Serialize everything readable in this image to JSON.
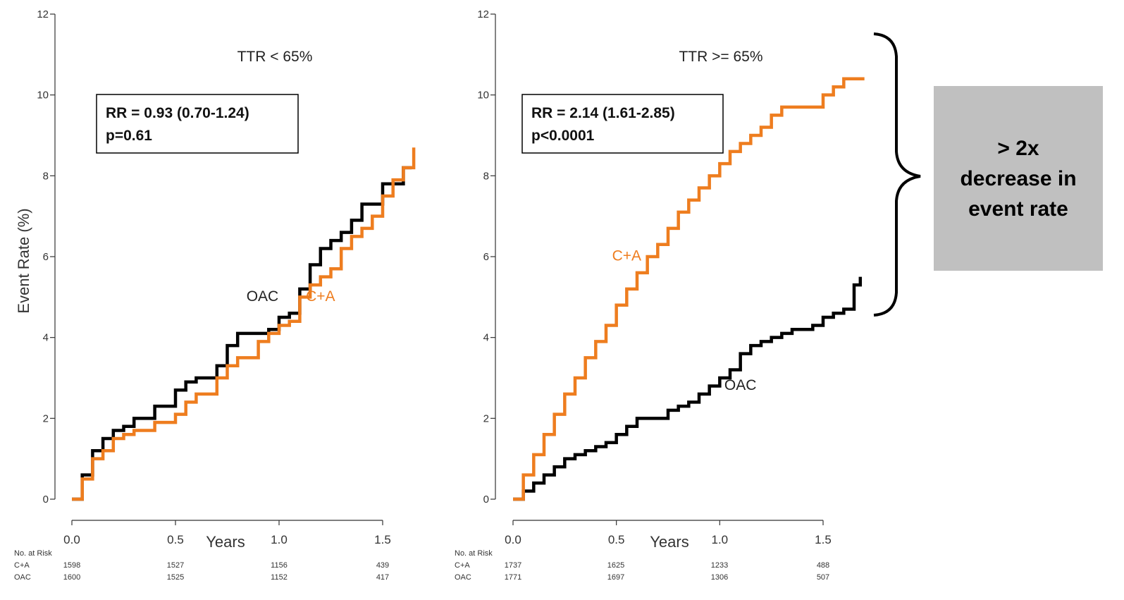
{
  "chart_data": [
    {
      "type": "line",
      "title": "TTR < 65%",
      "xlabel": "Years",
      "ylabel": "Event Rate (%)",
      "xlim": [
        0,
        1.7
      ],
      "ylim": [
        0,
        12
      ],
      "xticks": [
        "0.0",
        "0.5",
        "1.0",
        "1.5"
      ],
      "yticks": [
        "0",
        "2",
        "4",
        "6",
        "8",
        "10",
        "12"
      ],
      "stats_box": {
        "line1": "RR = 0.93 (0.70-1.24)",
        "line2": "p=0.61"
      },
      "series": [
        {
          "name": "OAC",
          "color": "#000000",
          "x": [
            0,
            0.05,
            0.1,
            0.15,
            0.2,
            0.25,
            0.3,
            0.4,
            0.5,
            0.55,
            0.6,
            0.7,
            0.75,
            0.8,
            0.9,
            0.95,
            1.0,
            1.05,
            1.1,
            1.15,
            1.2,
            1.25,
            1.3,
            1.35,
            1.4,
            1.45,
            1.5,
            1.55,
            1.6,
            1.64
          ],
          "y": [
            0,
            0.6,
            1.2,
            1.5,
            1.7,
            1.8,
            2.0,
            2.3,
            2.7,
            2.9,
            3.0,
            3.3,
            3.8,
            4.1,
            4.1,
            4.2,
            4.5,
            4.6,
            5.2,
            5.8,
            6.2,
            6.4,
            6.6,
            6.9,
            7.3,
            7.3,
            7.8,
            7.8,
            8.2,
            8.2
          ]
        },
        {
          "name": "C+A",
          "color": "#ee7d1f",
          "x": [
            0,
            0.05,
            0.1,
            0.15,
            0.2,
            0.25,
            0.3,
            0.4,
            0.5,
            0.55,
            0.6,
            0.7,
            0.75,
            0.8,
            0.9,
            0.95,
            1.0,
            1.05,
            1.1,
            1.15,
            1.2,
            1.25,
            1.3,
            1.35,
            1.4,
            1.45,
            1.5,
            1.55,
            1.6,
            1.65
          ],
          "y": [
            0,
            0.5,
            1.0,
            1.2,
            1.5,
            1.6,
            1.7,
            1.9,
            2.1,
            2.4,
            2.6,
            3.0,
            3.3,
            3.5,
            3.9,
            4.1,
            4.3,
            4.4,
            5.0,
            5.3,
            5.5,
            5.7,
            6.2,
            6.5,
            6.7,
            7.0,
            7.5,
            7.9,
            8.2,
            8.7
          ]
        }
      ],
      "curve_labels": [
        {
          "text": "OAC",
          "x": 0.92,
          "y": 4.9,
          "color": "#222222"
        },
        {
          "text": "C+A",
          "x": 1.2,
          "y": 4.9,
          "color": "#ee7d1f"
        }
      ],
      "at_risk": {
        "header": "No. at Risk",
        "rows": [
          {
            "label": "C+A",
            "values": [
              "1598",
              "1527",
              "1156",
              "439"
            ]
          },
          {
            "label": "OAC",
            "values": [
              "1600",
              "1525",
              "1152",
              "417"
            ]
          }
        ]
      }
    },
    {
      "type": "line",
      "title": "TTR >= 65%",
      "xlabel": "Years",
      "ylabel": "",
      "xlim": [
        0,
        1.7
      ],
      "ylim": [
        0,
        12
      ],
      "xticks": [
        "0.0",
        "0.5",
        "1.0",
        "1.5"
      ],
      "yticks": [
        "0",
        "2",
        "4",
        "6",
        "8",
        "10",
        "12"
      ],
      "stats_box": {
        "line1": "RR = 2.14 (1.61-2.85)",
        "line2": "p<0.0001"
      },
      "series": [
        {
          "name": "OAC",
          "color": "#000000",
          "x": [
            0,
            0.05,
            0.1,
            0.15,
            0.2,
            0.25,
            0.3,
            0.35,
            0.4,
            0.45,
            0.5,
            0.55,
            0.6,
            0.7,
            0.75,
            0.8,
            0.85,
            0.9,
            0.95,
            1.0,
            1.05,
            1.1,
            1.15,
            1.2,
            1.25,
            1.3,
            1.35,
            1.4,
            1.45,
            1.5,
            1.55,
            1.6,
            1.65,
            1.68
          ],
          "y": [
            0,
            0.2,
            0.4,
            0.6,
            0.8,
            1.0,
            1.1,
            1.2,
            1.3,
            1.4,
            1.6,
            1.8,
            2.0,
            2.0,
            2.2,
            2.3,
            2.4,
            2.6,
            2.8,
            3.0,
            3.2,
            3.6,
            3.8,
            3.9,
            4.0,
            4.1,
            4.2,
            4.2,
            4.3,
            4.5,
            4.6,
            4.7,
            5.3,
            5.5
          ]
        },
        {
          "name": "C+A",
          "color": "#ee7d1f",
          "x": [
            0,
            0.05,
            0.1,
            0.15,
            0.2,
            0.25,
            0.3,
            0.35,
            0.4,
            0.45,
            0.5,
            0.55,
            0.6,
            0.65,
            0.7,
            0.75,
            0.8,
            0.85,
            0.9,
            0.95,
            1.0,
            1.05,
            1.1,
            1.15,
            1.2,
            1.25,
            1.3,
            1.35,
            1.4,
            1.45,
            1.5,
            1.55,
            1.6,
            1.7
          ],
          "y": [
            0,
            0.6,
            1.1,
            1.6,
            2.1,
            2.6,
            3.0,
            3.5,
            3.9,
            4.3,
            4.8,
            5.2,
            5.6,
            6.0,
            6.3,
            6.7,
            7.1,
            7.4,
            7.7,
            8.0,
            8.3,
            8.6,
            8.8,
            9.0,
            9.2,
            9.5,
            9.7,
            9.7,
            9.7,
            9.7,
            10.0,
            10.2,
            10.4,
            10.4
          ]
        }
      ],
      "curve_labels": [
        {
          "text": "C+A",
          "x": 0.55,
          "y": 5.9,
          "color": "#ee7d1f"
        },
        {
          "text": "OAC",
          "x": 1.1,
          "y": 2.7,
          "color": "#222222"
        }
      ],
      "at_risk": {
        "header": "No. at Risk",
        "rows": [
          {
            "label": "C+A",
            "values": [
              "1737",
              "1625",
              "1233",
              "488"
            ]
          },
          {
            "label": "OAC",
            "values": [
              "1771",
              "1697",
              "1306",
              "507"
            ]
          }
        ]
      }
    }
  ],
  "callout": {
    "text": "> 2x\ndecrease in\nevent rate",
    "background": "#c0c0c0"
  }
}
